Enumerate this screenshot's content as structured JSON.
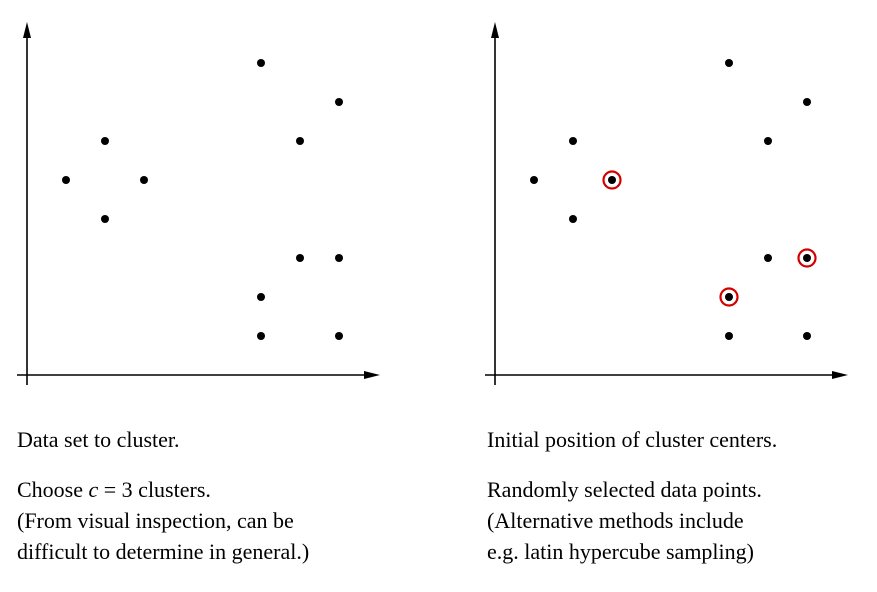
{
  "panels": [
    {
      "id": "left",
      "caption_title": "Data set to cluster.",
      "caption_lines": {
        "line1_pre": "Choose ",
        "line1_var": "c",
        "line1_post": " = 3 clusters.",
        "line2": "(From visual inspection, can be",
        "line3": "difficult to determine in general.)"
      }
    },
    {
      "id": "right",
      "caption_title": "Initial position of cluster centers.",
      "caption_lines": {
        "line1": "Randomly selected data points.",
        "line2": "(Alternative methods include",
        "line3": "e.g. latin hypercube sampling)"
      }
    }
  ],
  "points": [
    [
      1,
      5
    ],
    [
      2,
      6
    ],
    [
      2,
      4
    ],
    [
      3,
      5
    ],
    [
      6,
      8
    ],
    [
      8,
      7
    ],
    [
      7,
      6
    ],
    [
      7,
      3
    ],
    [
      8,
      3
    ],
    [
      6,
      2
    ],
    [
      6,
      1
    ],
    [
      8,
      1
    ]
  ],
  "selected_center_indices": [
    3,
    9,
    8
  ],
  "colors": {
    "point": "#000000",
    "center_ring": "#d40000",
    "axis": "#000000"
  }
}
